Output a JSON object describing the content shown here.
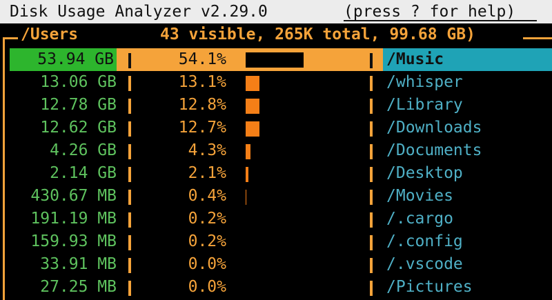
{
  "titlebar": {
    "app_title": "Disk Usage Analyzer v2.29.0",
    "help_hint": "(press ? for help)"
  },
  "header": {
    "path": "/Users",
    "summary": "43 visible, 265K total, 99.68 GB)"
  },
  "colors": {
    "size_text": "#5ec25e",
    "percent_text": "#f5a33a",
    "bar_fill": "#f57f17",
    "name_text": "#4fb0c6",
    "selected_size_bg": "#2db52d",
    "selected_pct_bg": "#f5a33a",
    "selected_name_bg": "#1fa3b6"
  },
  "rows": [
    {
      "size": "53.94 GB",
      "percent": "54.1%",
      "fraction": 0.541,
      "name": "/Music",
      "selected": true
    },
    {
      "size": "13.06 GB",
      "percent": "13.1%",
      "fraction": 0.131,
      "name": "/whisper"
    },
    {
      "size": "12.78 GB",
      "percent": "12.8%",
      "fraction": 0.128,
      "name": "/Library"
    },
    {
      "size": "12.62 GB",
      "percent": "12.7%",
      "fraction": 0.127,
      "name": "/Downloads"
    },
    {
      "size": "4.26 GB",
      "percent": "4.3%",
      "fraction": 0.043,
      "name": "/Documents"
    },
    {
      "size": "2.14 GB",
      "percent": "2.1%",
      "fraction": 0.021,
      "name": "/Desktop"
    },
    {
      "size": "430.67 MB",
      "percent": "0.4%",
      "fraction": 0.004,
      "name": "/Movies"
    },
    {
      "size": "191.19 MB",
      "percent": "0.2%",
      "fraction": 0.002,
      "name": "/.cargo"
    },
    {
      "size": "159.93 MB",
      "percent": "0.2%",
      "fraction": 0.002,
      "name": "/.config"
    },
    {
      "size": "33.91 MB",
      "percent": "0.0%",
      "fraction": 0.0,
      "name": "/.vscode"
    },
    {
      "size": "27.25 MB",
      "percent": "0.0%",
      "fraction": 0.0,
      "name": "/Pictures"
    }
  ]
}
